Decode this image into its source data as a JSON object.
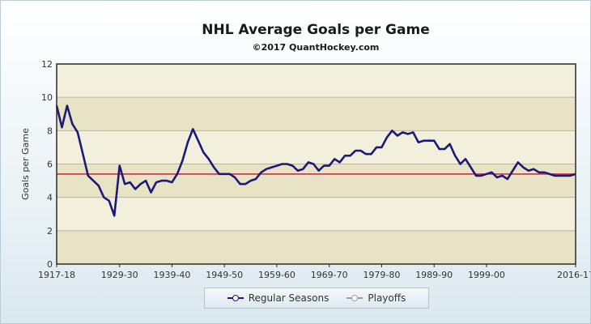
{
  "chart_data": {
    "type": "line",
    "title": "NHL Average Goals per Game",
    "subtitle": "©2017 QuantHockey.com",
    "xlabel": "",
    "ylabel": "Goals per Game",
    "ylim": [
      0,
      12
    ],
    "yticks": [
      0,
      2,
      4,
      6,
      8,
      10,
      12
    ],
    "x_tick_labels": [
      "1917-18",
      "1929-30",
      "1939-40",
      "1949-50",
      "1959-60",
      "1969-70",
      "1979-80",
      "1989-90",
      "1999-00",
      "2016-17"
    ],
    "grid": true,
    "legend_position": "bottom",
    "reference_line": {
      "value": 5.4,
      "color": "#c0263a"
    },
    "series": [
      {
        "name": "Regular Seasons",
        "color": "#1a1a7a",
        "x": [
          1917,
          1918,
          1919,
          1920,
          1921,
          1922,
          1923,
          1924,
          1925,
          1926,
          1927,
          1928,
          1929,
          1930,
          1931,
          1932,
          1933,
          1934,
          1935,
          1936,
          1937,
          1938,
          1939,
          1940,
          1941,
          1942,
          1943,
          1944,
          1945,
          1946,
          1947,
          1948,
          1949,
          1950,
          1951,
          1952,
          1953,
          1954,
          1955,
          1956,
          1957,
          1958,
          1959,
          1960,
          1961,
          1962,
          1963,
          1964,
          1965,
          1966,
          1967,
          1968,
          1969,
          1970,
          1971,
          1972,
          1973,
          1974,
          1975,
          1976,
          1977,
          1978,
          1979,
          1980,
          1981,
          1982,
          1983,
          1984,
          1985,
          1986,
          1987,
          1988,
          1989,
          1990,
          1991,
          1992,
          1993,
          1994,
          1995,
          1996,
          1997,
          1998,
          1999,
          2000,
          2001,
          2002,
          2003,
          2005,
          2006,
          2007,
          2008,
          2009,
          2010,
          2011,
          2012,
          2013,
          2014,
          2015,
          2016
        ],
        "y": [
          9.5,
          8.2,
          9.5,
          8.4,
          7.9,
          6.6,
          5.3,
          5.0,
          4.7,
          4.0,
          3.8,
          2.9,
          5.9,
          4.8,
          4.9,
          4.5,
          4.8,
          5.0,
          4.3,
          4.9,
          5.0,
          5.0,
          4.9,
          5.4,
          6.2,
          7.3,
          8.1,
          7.4,
          6.7,
          6.3,
          5.8,
          5.4,
          5.4,
          5.4,
          5.2,
          4.8,
          4.8,
          5.0,
          5.1,
          5.5,
          5.7,
          5.8,
          5.9,
          6.0,
          6.0,
          5.9,
          5.6,
          5.7,
          6.1,
          6.0,
          5.6,
          5.9,
          5.9,
          6.3,
          6.1,
          6.5,
          6.5,
          6.8,
          6.8,
          6.6,
          6.6,
          7.0,
          7.0,
          7.6,
          8.0,
          7.7,
          7.9,
          7.8,
          7.9,
          7.3,
          7.4,
          7.4,
          7.4,
          6.9,
          6.9,
          7.2,
          6.5,
          6.0,
          6.3,
          5.8,
          5.3,
          5.3,
          5.4,
          5.5,
          5.2,
          5.3,
          5.1,
          6.1,
          5.8,
          5.6,
          5.7,
          5.5,
          5.5,
          5.4,
          5.3,
          5.3,
          5.3,
          5.3,
          5.4
        ]
      },
      {
        "name": "Playoffs",
        "color": "#9aa0a6",
        "x": [],
        "y": []
      }
    ]
  }
}
